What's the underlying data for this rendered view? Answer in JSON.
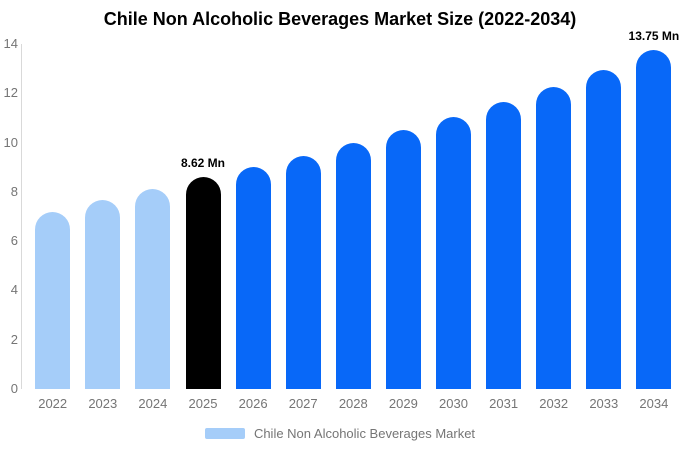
{
  "chart_data": {
    "type": "bar",
    "title": "Chile Non Alcoholic Beverages Market Size (2022-2034)",
    "unit": "Mn",
    "categories": [
      "2022",
      "2023",
      "2024",
      "2025",
      "2026",
      "2027",
      "2028",
      "2029",
      "2030",
      "2031",
      "2032",
      "2033",
      "2034"
    ],
    "values": [
      7.2,
      7.65,
      8.1,
      8.62,
      9.0,
      9.45,
      10.0,
      10.5,
      11.05,
      11.65,
      12.25,
      12.95,
      13.75
    ],
    "bar_color_keys": [
      "historical",
      "historical",
      "historical",
      "base_year",
      "forecast",
      "forecast",
      "forecast",
      "forecast",
      "forecast",
      "forecast",
      "forecast",
      "forecast",
      "forecast"
    ],
    "palette": {
      "historical": "#A5CDF9",
      "base_year": "#000000",
      "forecast": "#0868F8"
    },
    "annotations": [
      {
        "category": "2025",
        "text": "8.62 Mn"
      },
      {
        "category": "2034",
        "text": "13.75 Mn"
      }
    ],
    "ylim": [
      0,
      14
    ],
    "yticks": [
      0,
      2,
      4,
      6,
      8,
      10,
      12,
      14
    ],
    "grid": false,
    "axis_color": "#d9d9d9",
    "tick_label_color": "#757575",
    "legend": {
      "label": "Chile Non Alcoholic Beverages Market",
      "swatch_color": "#A5CDF9",
      "position": "bottom"
    }
  }
}
